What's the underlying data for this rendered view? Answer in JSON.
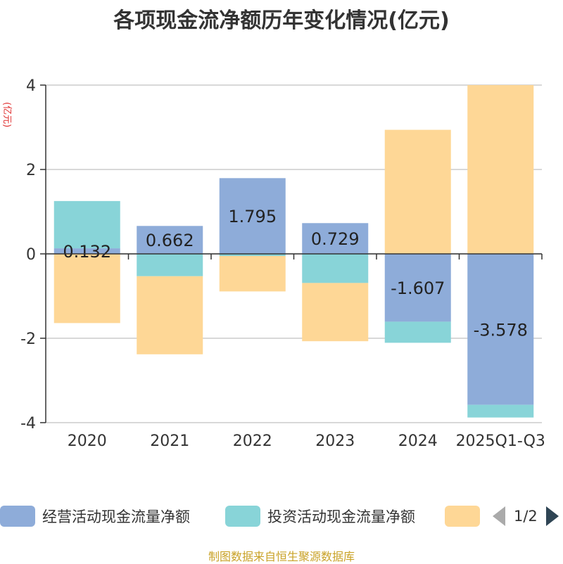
{
  "title": "各项现金流净额历年变化情况(亿元)",
  "unit_label": "(亿元)",
  "source": "制图数据来自恒生聚源数据库",
  "legend": {
    "items": [
      {
        "name": "经营活动现金流量净额",
        "color": "#8eacd9"
      },
      {
        "name": "投资活动现金流量净额",
        "color": "#88d4d8"
      },
      {
        "name": "",
        "color": "#fed796"
      }
    ],
    "pager": "1/2"
  },
  "chart_data": {
    "type": "bar",
    "stacked": true,
    "categories": [
      "2020",
      "2021",
      "2022",
      "2023",
      "2024",
      "2025Q1-Q3"
    ],
    "ylim": [
      -4,
      4
    ],
    "yticks": [
      4,
      2,
      0,
      -2,
      -4
    ],
    "grid": true,
    "legend_position": "bottom",
    "series": [
      {
        "name": "经营活动现金流量净额",
        "color": "#8eacd9",
        "values": [
          0.132,
          0.662,
          1.795,
          0.729,
          -1.607,
          -3.578
        ],
        "labels": [
          "0.132",
          "0.662",
          "1.795",
          "0.729",
          "-1.607",
          "-3.578"
        ]
      },
      {
        "name": "投资活动现金流量净额",
        "color": "#88d4d8",
        "values": [
          1.12,
          -0.53,
          -0.05,
          -0.69,
          -0.5,
          -0.3
        ]
      },
      {
        "name": "",
        "color": "#fed796",
        "values": [
          -1.64,
          -1.85,
          -0.84,
          -1.38,
          2.94,
          4.0
        ]
      }
    ]
  }
}
